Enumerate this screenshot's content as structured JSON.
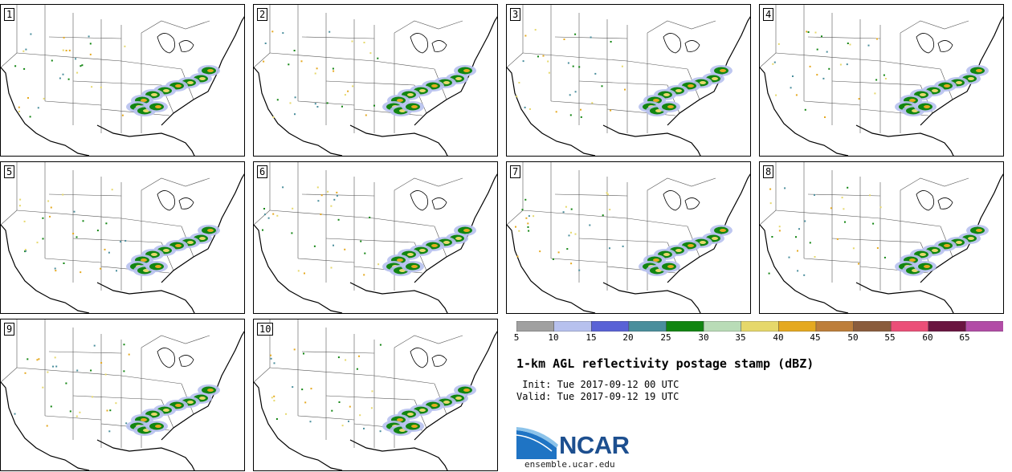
{
  "panels": [
    "1",
    "2",
    "3",
    "4",
    "5",
    "6",
    "7",
    "8",
    "9",
    "10"
  ],
  "colorbar": {
    "colors": [
      "#a0a0a0",
      "#b7c1ee",
      "#5962d6",
      "#4a8e9c",
      "#118511",
      "#b9dcb7",
      "#e6d86b",
      "#e5a920",
      "#bd7e3a",
      "#8a5c3c",
      "#eb4f78",
      "#6a1540",
      "#b24ca6"
    ],
    "ticks": [
      "5",
      "10",
      "15",
      "20",
      "25",
      "30",
      "35",
      "40",
      "45",
      "50",
      "55",
      "60",
      "65"
    ]
  },
  "title": "1-km AGL reflectivity postage stamp (dBZ)",
  "init": " Init: Tue 2017-09-12 00 UTC",
  "valid": "Valid: Tue 2017-09-12 19 UTC",
  "logo": {
    "text": "NCAR",
    "url": "ensemble.ucar.edu"
  }
}
